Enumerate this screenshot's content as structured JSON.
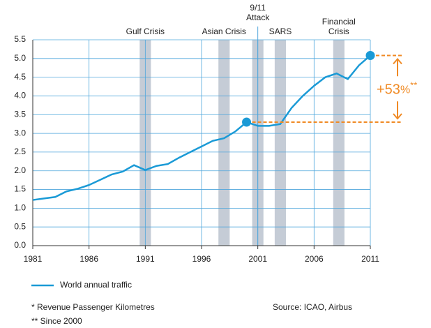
{
  "chart_data": {
    "type": "line",
    "x": [
      1981,
      1982,
      1983,
      1984,
      1985,
      1986,
      1987,
      1988,
      1989,
      1990,
      1991,
      1992,
      1993,
      1994,
      1995,
      1996,
      1997,
      1998,
      1999,
      2000,
      2001,
      2002,
      2003,
      2004,
      2005,
      2006,
      2007,
      2008,
      2009,
      2010,
      2011
    ],
    "series": [
      {
        "name": "World annual traffic",
        "color": "#1a9ad6",
        "values": [
          1.22,
          1.26,
          1.3,
          1.45,
          1.52,
          1.62,
          1.76,
          1.9,
          1.98,
          2.15,
          2.02,
          2.13,
          2.18,
          2.35,
          2.5,
          2.65,
          2.8,
          2.87,
          3.05,
          3.3,
          3.2,
          3.2,
          3.25,
          3.68,
          4.0,
          4.27,
          4.5,
          4.6,
          4.45,
          4.82,
          5.08
        ]
      }
    ],
    "xlim": [
      1981,
      2011
    ],
    "xticks": [
      1981,
      1986,
      1991,
      1996,
      2001,
      2006,
      2011
    ],
    "ylim": [
      0,
      5.5
    ],
    "yticks": [
      {
        "value": 0,
        "label": "0.0"
      },
      0.5,
      {
        "value": 1,
        "label": "1.0"
      },
      1.5,
      {
        "value": 2,
        "label": "2.0"
      },
      2.5,
      {
        "value": 3,
        "label": "3.0"
      },
      3.5,
      {
        "value": 4,
        "label": "4.0"
      },
      4.5,
      {
        "value": 5,
        "label": "5.0"
      },
      5.5
    ],
    "grid": true,
    "events": [
      {
        "label": [
          "Gulf Crisis"
        ],
        "x0": 1990.5,
        "x1": 1991.5
      },
      {
        "label": [
          "Asian Crisis"
        ],
        "x0": 1997.5,
        "x1": 1998.5
      },
      {
        "label": [
          "9/11",
          "Attack"
        ],
        "x0": 2000.5,
        "x1": 2001.5,
        "marker": 2001
      },
      {
        "label": [
          "SARS"
        ],
        "x0": 2002.5,
        "x1": 2003.5
      },
      {
        "label": [
          "Financial",
          "Crisis"
        ],
        "x0": 2007.7,
        "x1": 2008.7
      }
    ],
    "event_color": "#c5ccd6",
    "change": {
      "parts": [
        "+53",
        "%",
        "**"
      ],
      "color": "#f08a24"
    },
    "footnotes": [
      "* Revenue Passenger Kilometres",
      "** Since 2000"
    ],
    "source": "Source: ICAO, Airbus"
  }
}
